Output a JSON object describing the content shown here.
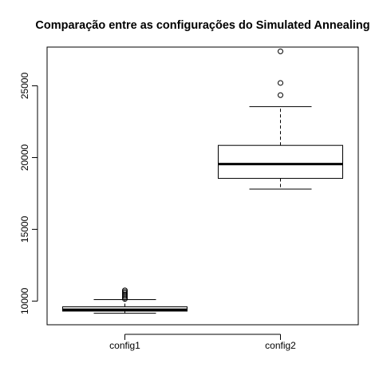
{
  "chart_data": {
    "type": "box",
    "title": "Comparação entre as configurações do Simulated Annealing",
    "xlabel": "",
    "ylabel": "",
    "categories": [
      "config1",
      "config2"
    ],
    "ylim": [
      8350,
      27700
    ],
    "yticks": [
      10000,
      15000,
      20000,
      25000
    ],
    "y_tick_labels": [
      "10000",
      "15000",
      "20000",
      "25000"
    ],
    "boxes": [
      {
        "name": "config1",
        "whisker_low": 9150,
        "q1": 9300,
        "median": 9400,
        "q3": 9600,
        "whisker_high": 10100,
        "outliers": [
          10150,
          10250,
          10350,
          10450,
          10550,
          10650,
          10750
        ]
      },
      {
        "name": "config2",
        "whisker_low": 17800,
        "q1": 18550,
        "median": 19550,
        "q3": 20850,
        "whisker_high": 23550,
        "outliers": [
          24350,
          25200,
          27400
        ]
      }
    ],
    "grid": false,
    "legend": "none"
  }
}
